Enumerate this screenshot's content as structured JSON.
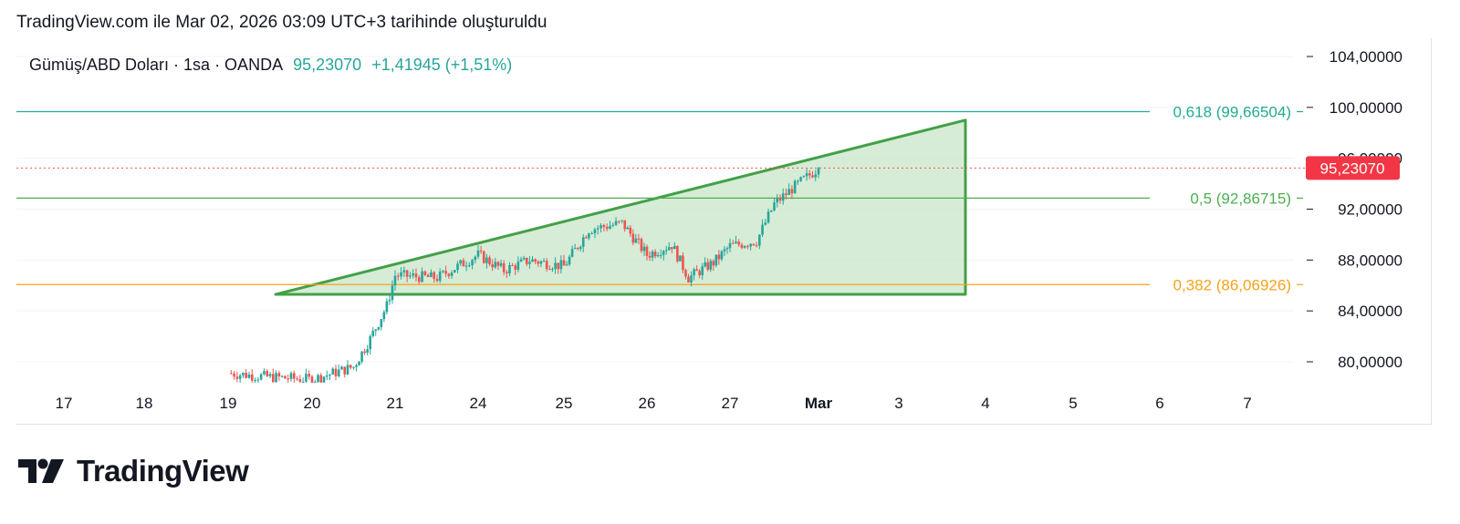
{
  "header": {
    "text": "TradingView.com ile Mar 02, 2026 03:09 UTC+3 tarihinde oluşturuldu"
  },
  "legend": {
    "symbol": "Gümüş/ABD Doları · 1sa · OANDA",
    "last": "95,23070",
    "change": "+1,41945 (+1,51%)"
  },
  "footer": {
    "brand": "TradingView",
    "logo_icon": "tradingview-logo-icon"
  },
  "colors": {
    "up": "#26a69a",
    "down": "#ef5350",
    "fib618": "#22ab94",
    "fib50": "#4caf50",
    "fib382": "#f5a31a",
    "triangle_stroke": "#43a047",
    "triangle_fill": "#c8e6c9",
    "price_badge": "#f23645"
  },
  "chart_data": {
    "type": "candlestick",
    "title": "",
    "instrument": "Gümüş/ABD Doları",
    "interval": "1sa",
    "source": "OANDA",
    "y_axis": {
      "ticks": [
        80,
        84,
        88,
        92,
        96,
        100,
        104
      ],
      "tick_labels": [
        "80,00000",
        "84,00000",
        "88,00000",
        "92,00000",
        "96,00000",
        "100,00000",
        "104,00000"
      ],
      "range": [
        77.8,
        106.2
      ]
    },
    "x_axis": {
      "ticks": [
        "17",
        "18",
        "19",
        "20",
        "21",
        "24",
        "25",
        "26",
        "27",
        "Mar",
        "3",
        "4",
        "5",
        "6",
        "7"
      ],
      "bold": "Mar"
    },
    "current_price": {
      "value": 95.2307,
      "label": "95,23070"
    },
    "fib_levels": [
      {
        "ratio": "0.618",
        "value": 99.66504,
        "label": "0,618 (99,66504)",
        "color": "#22ab94"
      },
      {
        "ratio": "0.5",
        "value": 92.86715,
        "label": "0,5 (92,86715)",
        "color": "#4caf50"
      },
      {
        "ratio": "0.382",
        "value": 86.06926,
        "label": "0,382 (86,06926)",
        "color": "#f5a31a"
      }
    ],
    "triangle": {
      "description": "ascending wedge drawing",
      "points": [
        {
          "x": "Feb 19 late",
          "y": 85.3
        },
        {
          "x": "Mar 3 late",
          "y": 99.0
        },
        {
          "x": "Mar 3 late",
          "y": 85.3
        }
      ]
    },
    "candles_close_path": [
      {
        "x": "19",
        "y": 79.1
      },
      {
        "x": "19.5",
        "y": 78.8
      },
      {
        "x": "20",
        "y": 78.6
      },
      {
        "x": "20.5",
        "y": 79.6
      },
      {
        "x": "20.7",
        "y": 81.8
      },
      {
        "x": "20.9",
        "y": 84.4
      },
      {
        "x": "21",
        "y": 86.8
      },
      {
        "x": "21.5",
        "y": 86.6
      },
      {
        "x": "24",
        "y": 88.4
      },
      {
        "x": "24.3",
        "y": 87.2
      },
      {
        "x": "24.6",
        "y": 88.0
      },
      {
        "x": "25",
        "y": 87.5
      },
      {
        "x": "25.3",
        "y": 90.4
      },
      {
        "x": "25.7",
        "y": 90.9
      },
      {
        "x": "26",
        "y": 88.4
      },
      {
        "x": "26.3",
        "y": 89.2
      },
      {
        "x": "26.5",
        "y": 86.6
      },
      {
        "x": "26.8",
        "y": 87.8
      },
      {
        "x": "27",
        "y": 89.1
      },
      {
        "x": "27.3",
        "y": 89.5
      },
      {
        "x": "27.5",
        "y": 92.4
      },
      {
        "x": "27.7",
        "y": 93.6
      },
      {
        "x": "Mar",
        "y": 95.23
      }
    ]
  }
}
